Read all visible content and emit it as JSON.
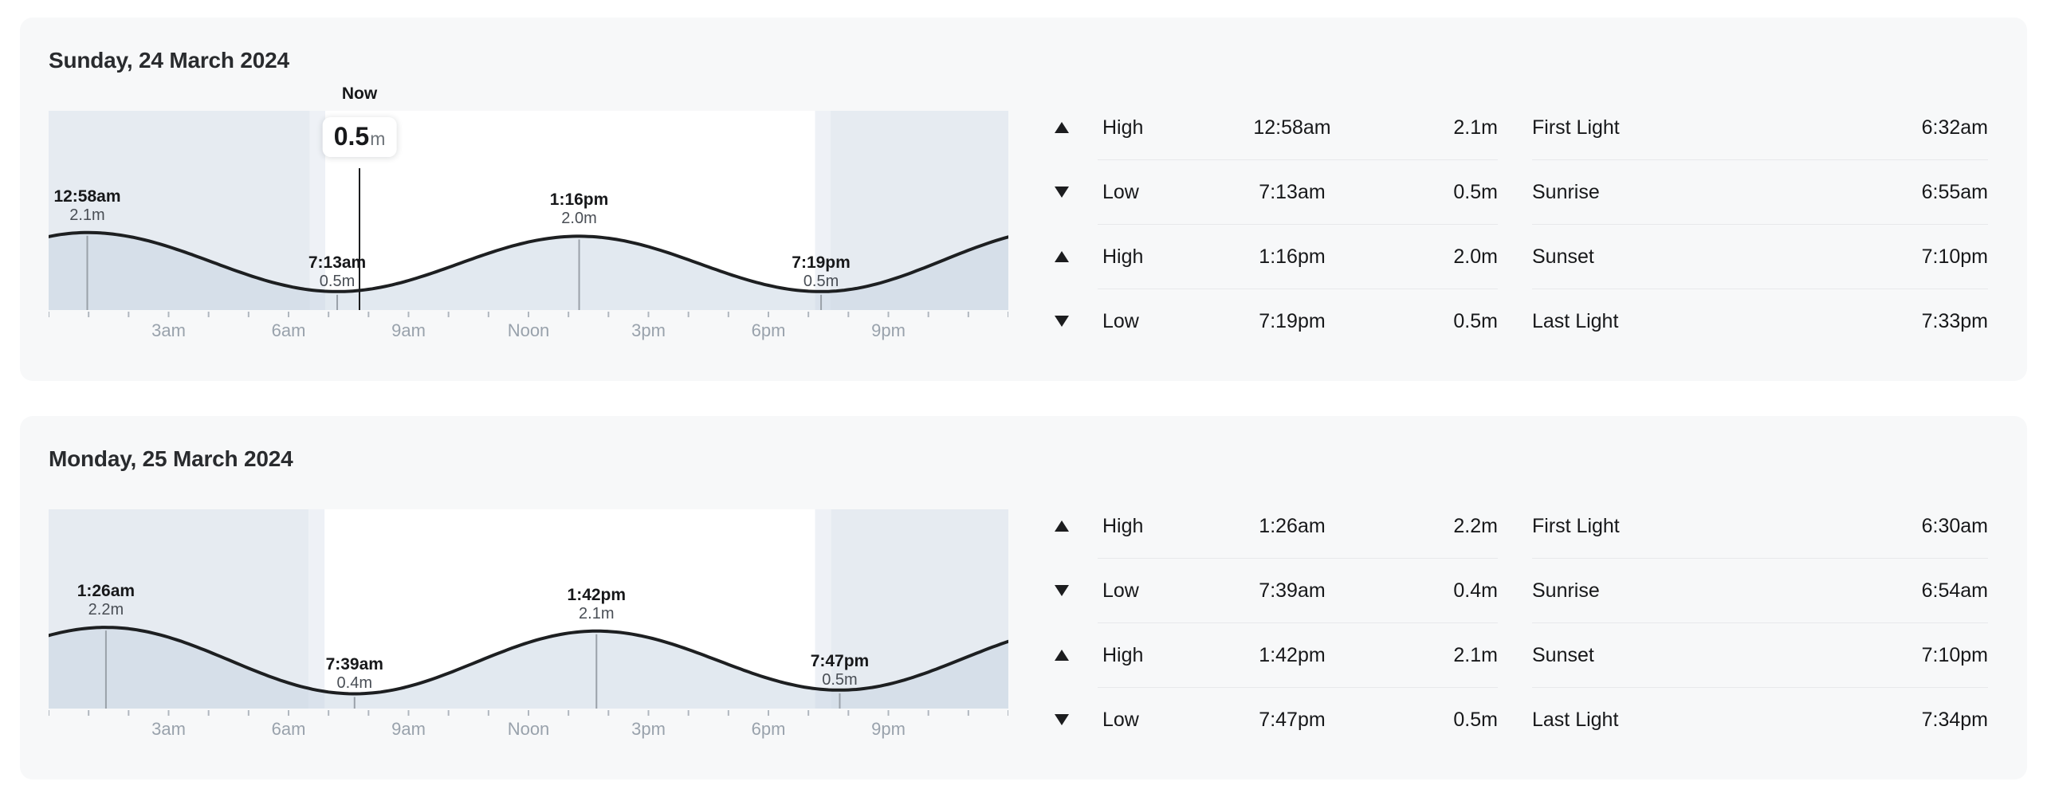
{
  "colors": {
    "page_bg": "#ffffff",
    "card_bg": "#f7f8f9",
    "chart_day": "#ffffff",
    "chart_night": "#e6ebf1",
    "chart_twilight": "#eef1f6",
    "tide_area_fill": "rgba(197,211,225,0.5)",
    "tide_curve": "#1d1f21",
    "extreme_marker_line": "#9aa1a9",
    "axis_tick": "#b0b7bf",
    "axis_text": "#99a2ac",
    "divider": "#e8e9eb",
    "text": "#17181a",
    "muted_text": "#494e55",
    "badge_unit_text": "#6d7379"
  },
  "days": [
    {
      "title": "Sunday, 24 March 2024",
      "tide_table": [
        {
          "type": "High",
          "time": "12:58am",
          "height": "2.1m",
          "direction": "up"
        },
        {
          "type": "Low",
          "time": "7:13am",
          "height": "0.5m",
          "direction": "down"
        },
        {
          "type": "High",
          "time": "1:16pm",
          "height": "2.0m",
          "direction": "up"
        },
        {
          "type": "Low",
          "time": "7:19pm",
          "height": "0.5m",
          "direction": "down"
        }
      ],
      "sun_table": [
        {
          "label": "First Light",
          "time": "6:32am"
        },
        {
          "label": "Sunrise",
          "time": "6:55am"
        },
        {
          "label": "Sunset",
          "time": "7:10pm"
        },
        {
          "label": "Last Light",
          "time": "7:33pm"
        }
      ]
    },
    {
      "title": "Monday, 25 March 2024",
      "tide_table": [
        {
          "type": "High",
          "time": "1:26am",
          "height": "2.2m",
          "direction": "up"
        },
        {
          "type": "Low",
          "time": "7:39am",
          "height": "0.4m",
          "direction": "down"
        },
        {
          "type": "High",
          "time": "1:42pm",
          "height": "2.1m",
          "direction": "up"
        },
        {
          "type": "Low",
          "time": "7:47pm",
          "height": "0.5m",
          "direction": "down"
        }
      ],
      "sun_table": [
        {
          "label": "First Light",
          "time": "6:30am"
        },
        {
          "label": "Sunrise",
          "time": "6:54am"
        },
        {
          "label": "Sunset",
          "time": "7:10pm"
        },
        {
          "label": "Last Light",
          "time": "7:34pm"
        }
      ]
    }
  ],
  "chart_data": [
    {
      "type": "area",
      "title": "Sunday, 24 March 2024",
      "x_unit": "hour-of-day",
      "xlim": [
        0,
        24
      ],
      "ylim_m": [
        0,
        5.4
      ],
      "grid": false,
      "points": [
        {
          "label": "12:58am",
          "height_label": "2.1m",
          "hour": 0.9667,
          "height_m": 2.1,
          "kind": "high"
        },
        {
          "label": "7:13am",
          "height_label": "0.5m",
          "hour": 7.2167,
          "height_m": 0.5,
          "kind": "low"
        },
        {
          "label": "1:16pm",
          "height_label": "2.0m",
          "hour": 13.2667,
          "height_m": 2.0,
          "kind": "high"
        },
        {
          "label": "7:19pm",
          "height_label": "0.5m",
          "hour": 19.3167,
          "height_m": 0.5,
          "kind": "low"
        }
      ],
      "curve_extremes": [
        [
          -4.75,
          0.5
        ],
        [
          0.9667,
          2.1
        ],
        [
          7.2167,
          0.5
        ],
        [
          13.2667,
          2.0
        ],
        [
          19.3167,
          0.5
        ],
        [
          25.43,
          2.2
        ]
      ],
      "sun_hours": {
        "first_light": 6.5333,
        "sunrise": 6.9167,
        "sunset": 19.1667,
        "last_light": 19.55
      },
      "x_ticks": [
        {
          "hour": 3,
          "label": "3am"
        },
        {
          "hour": 6,
          "label": "6am"
        },
        {
          "hour": 9,
          "label": "9am"
        },
        {
          "hour": 12,
          "label": "Noon"
        },
        {
          "hour": 15,
          "label": "3pm"
        },
        {
          "hour": 18,
          "label": "6pm"
        },
        {
          "hour": 21,
          "label": "9pm"
        }
      ],
      "now": {
        "label": "Now",
        "value": "0.5",
        "unit": "m",
        "hour": 7.775,
        "height_m": 0.5
      }
    },
    {
      "type": "area",
      "title": "Monday, 25 March 2024",
      "x_unit": "hour-of-day",
      "xlim": [
        0,
        24
      ],
      "ylim_m": [
        0,
        5.4
      ],
      "grid": false,
      "points": [
        {
          "label": "1:26am",
          "height_label": "2.2m",
          "hour": 1.4333,
          "height_m": 2.2,
          "kind": "high"
        },
        {
          "label": "7:39am",
          "height_label": "0.4m",
          "hour": 7.65,
          "height_m": 0.4,
          "kind": "low"
        },
        {
          "label": "1:42pm",
          "height_label": "2.1m",
          "hour": 13.7,
          "height_m": 2.1,
          "kind": "high"
        },
        {
          "label": "7:47pm",
          "height_label": "0.5m",
          "hour": 19.7833,
          "height_m": 0.5,
          "kind": "low"
        }
      ],
      "curve_extremes": [
        [
          -4.6833,
          0.5
        ],
        [
          1.4333,
          2.2
        ],
        [
          7.65,
          0.4
        ],
        [
          13.7,
          2.1
        ],
        [
          19.7833,
          0.5
        ],
        [
          25.93,
          2.2
        ]
      ],
      "sun_hours": {
        "first_light": 6.5,
        "sunrise": 6.9,
        "sunset": 19.1667,
        "last_light": 19.5667
      },
      "x_ticks": [
        {
          "hour": 3,
          "label": "3am"
        },
        {
          "hour": 6,
          "label": "6am"
        },
        {
          "hour": 9,
          "label": "9am"
        },
        {
          "hour": 12,
          "label": "Noon"
        },
        {
          "hour": 15,
          "label": "3pm"
        },
        {
          "hour": 18,
          "label": "6pm"
        },
        {
          "hour": 21,
          "label": "9pm"
        }
      ],
      "now": null
    }
  ]
}
